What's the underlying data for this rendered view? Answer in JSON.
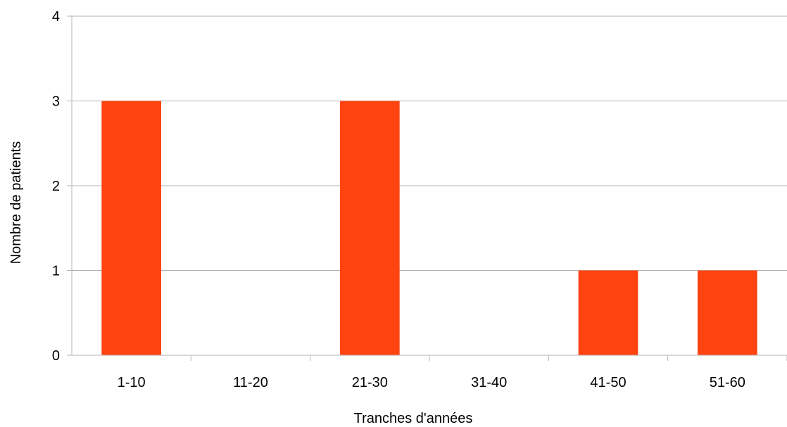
{
  "chart_data": {
    "type": "bar",
    "categories": [
      "1-10",
      "11-20",
      "21-30",
      "31-40",
      "41-50",
      "51-60"
    ],
    "values": [
      3,
      0,
      3,
      0,
      1,
      1
    ],
    "title": "",
    "xlabel": "Tranches d'années",
    "ylabel": "Nombre de patients",
    "ylim": [
      0,
      4
    ],
    "yticks": [
      "0",
      "1",
      "2",
      "3",
      "4"
    ],
    "grid": true,
    "legend": "none",
    "bar_color": "#ff4411",
    "grid_color": "#b3b3b3"
  }
}
